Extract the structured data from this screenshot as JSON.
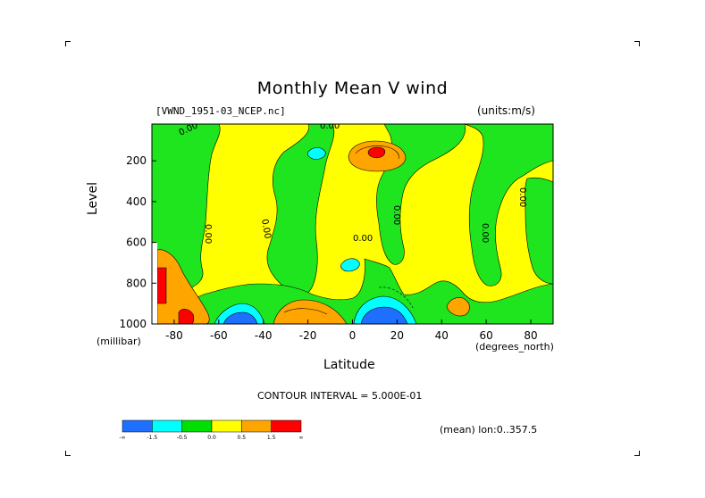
{
  "chart_data": {
    "type": "heatmap",
    "title": "Monthly Mean V wind",
    "dataset": "[VWND_1951-03_NCEP.nc]",
    "units_label": "(units:m/s)",
    "xlabel": "Latitude",
    "xunits": "(degrees_north)",
    "ylabel": "Level",
    "yunits": "(millibar)",
    "xlim": [
      -90,
      90
    ],
    "ylim": [
      1000,
      20
    ],
    "x_ticks": [
      -80,
      -60,
      -40,
      -20,
      0,
      20,
      40,
      60,
      80
    ],
    "y_ticks": [
      200,
      400,
      600,
      800,
      1000
    ],
    "contour_interval_text": "CONTOUR INTERVAL = 5.000E-01",
    "contour_labels": [
      "0.00",
      "0.00",
      "0.00",
      "0.00",
      "0.00",
      "0.00",
      "0.00",
      "0.00"
    ],
    "mean_text": "(mean) lon:0..357.5",
    "colorbar": {
      "colors": [
        "#1f6fff",
        "#00ffff",
        "#00e000",
        "#ffff00",
        "#ffa500",
        "#ff0000"
      ],
      "tick_labels": [
        "-∞",
        "-1.5",
        "-0.5",
        "0.0",
        "0.5",
        "1.5",
        "∞"
      ]
    }
  },
  "colors": {
    "yellow": "#ffff00",
    "green": "#1ee51e",
    "cyan": "#00ffff",
    "blue": "#1f6fff",
    "orange": "#ffa500",
    "red": "#ff0000"
  }
}
